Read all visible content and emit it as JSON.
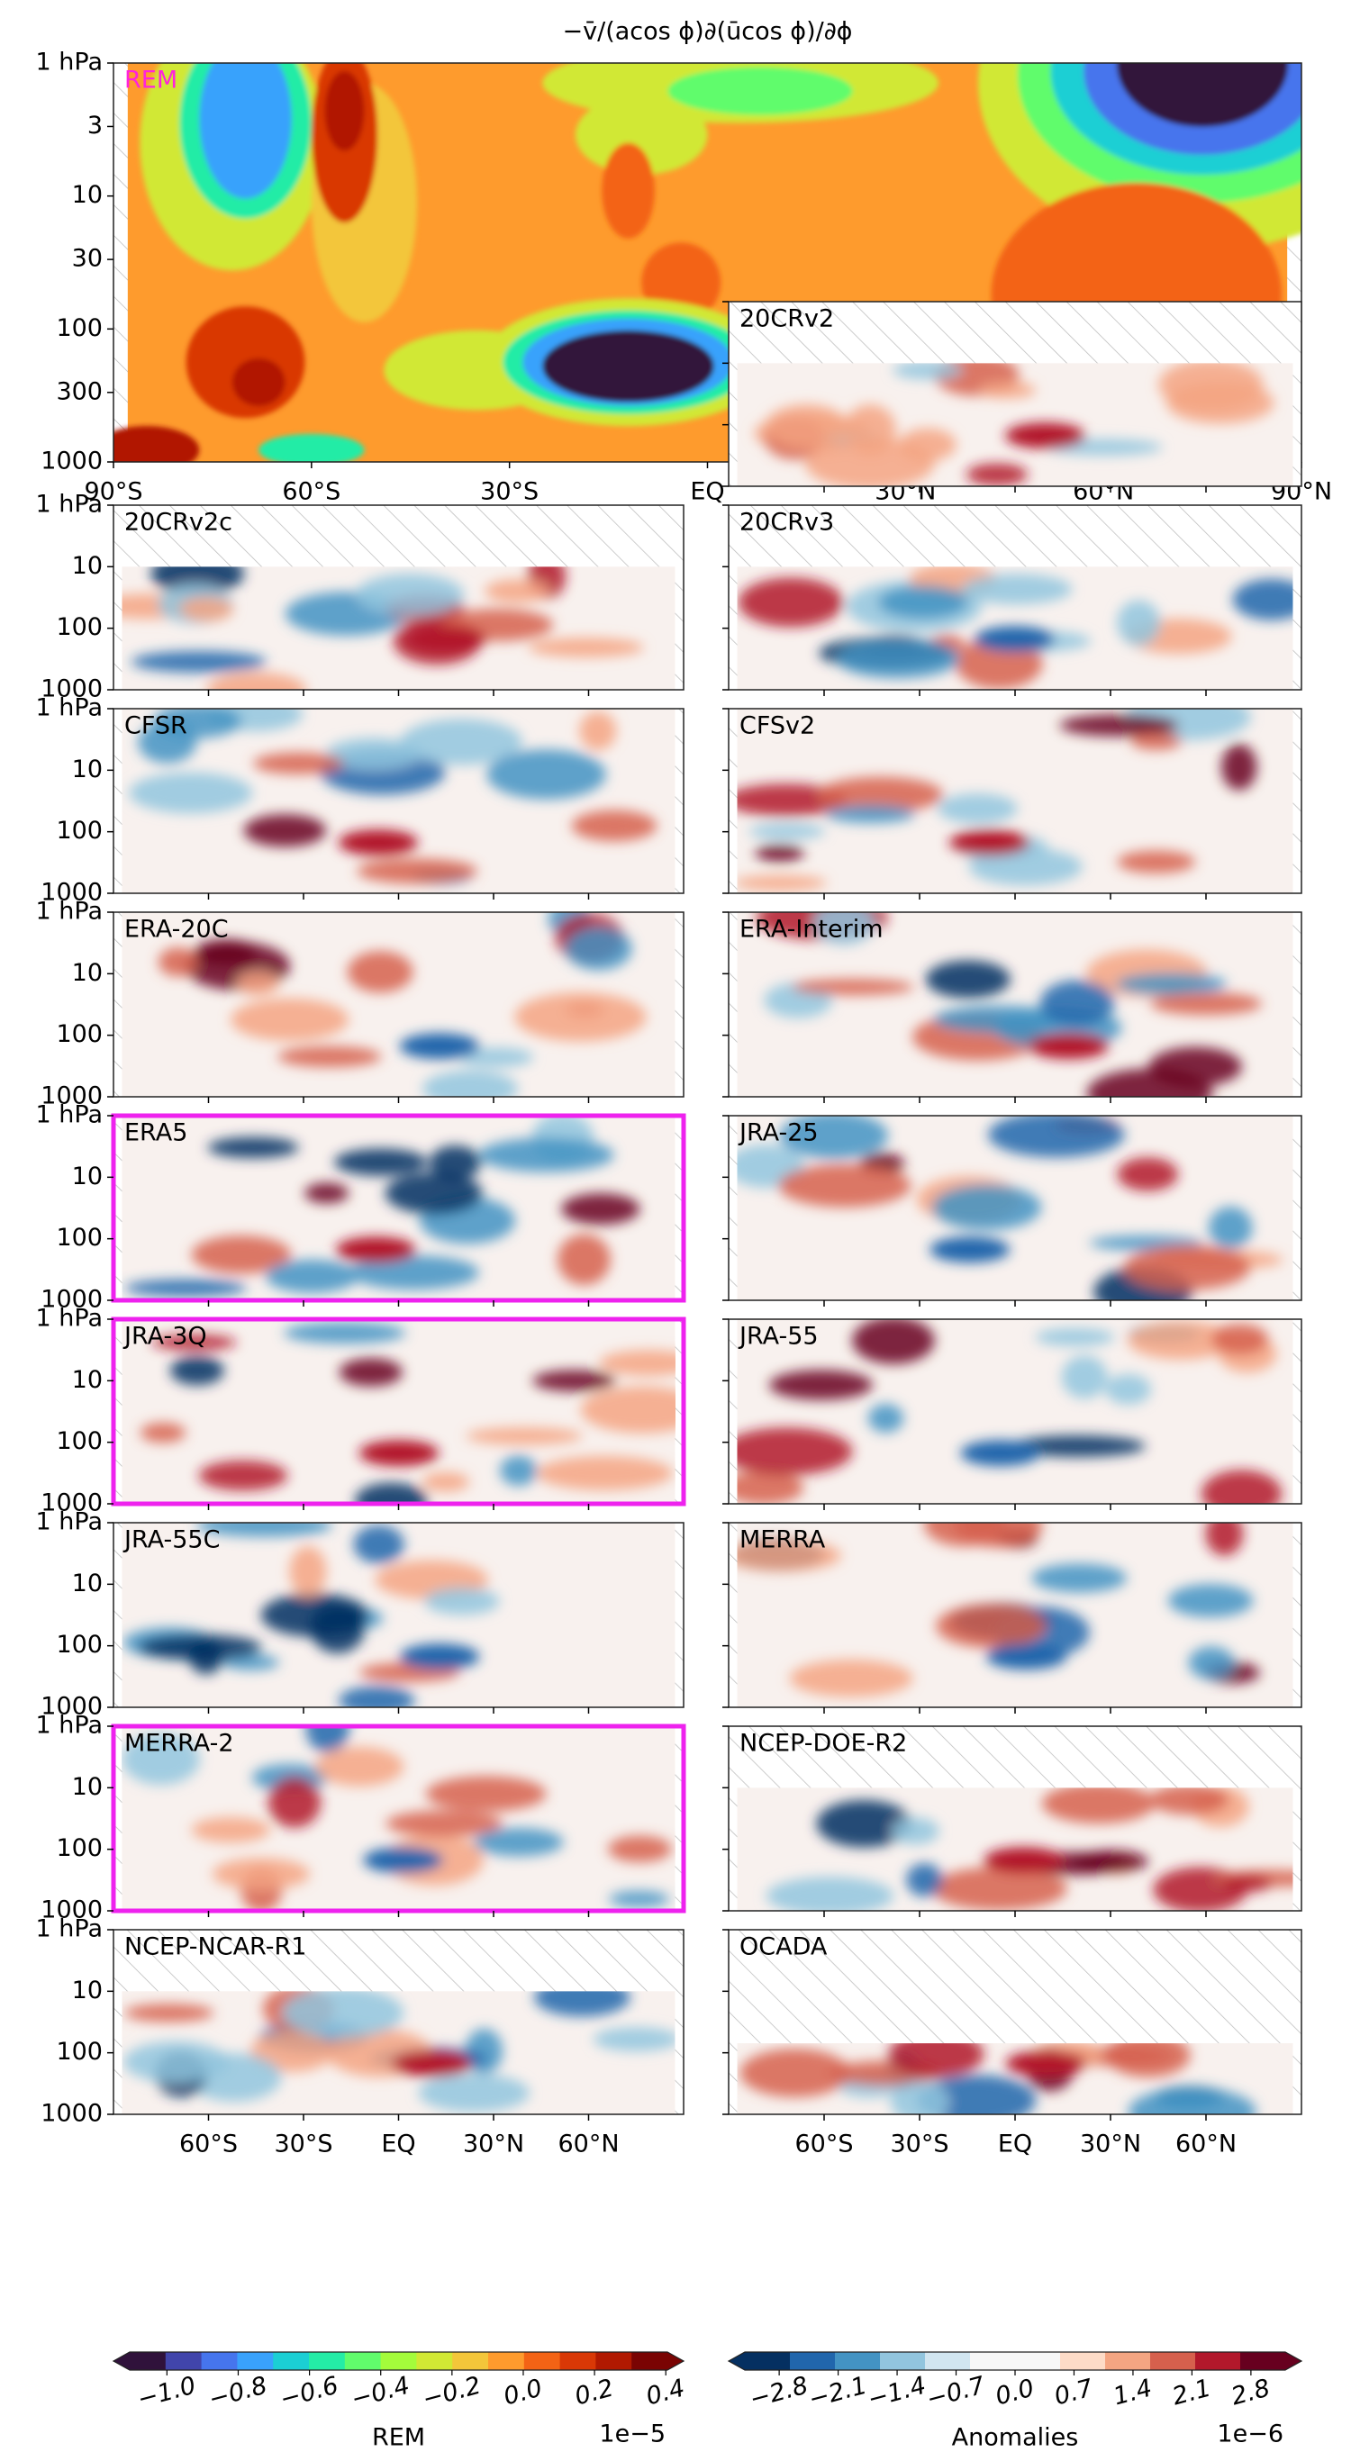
{
  "chart_data": [
    {
      "type": "contour",
      "title": "−v̄/(acos ϕ)∂(ūcos ϕ)/∂ϕ",
      "label": "REM",
      "label_color": "#ff22dd",
      "xlim": [
        -90,
        90
      ],
      "ylim": [
        1000,
        1
      ],
      "log_y": true,
      "xticks": [
        {
          "value": -90,
          "label": "90°S"
        },
        {
          "value": -60,
          "label": "60°S"
        },
        {
          "value": -30,
          "label": "30°S"
        },
        {
          "value": 0,
          "label": "EQ"
        },
        {
          "value": 30,
          "label": "30°N"
        },
        {
          "value": 60,
          "label": "60°N"
        },
        {
          "value": 90,
          "label": "90°N"
        }
      ],
      "xtick_labels": true,
      "yticks": [
        {
          "value": 1,
          "label": "1 hPa"
        },
        3,
        10,
        30,
        100,
        300,
        1000
      ],
      "ytick_labels": true,
      "colorbar": 0
    },
    {
      "type": "contour",
      "label": "20CRv2",
      "xlim": [
        -90,
        90
      ],
      "ylim": [
        1000,
        1
      ],
      "log_y": true,
      "xticks": [
        -60,
        -30,
        0,
        30,
        60
      ],
      "xtick_labels": false,
      "yticks": [
        1,
        10,
        100,
        1000
      ],
      "ytick_labels": false,
      "hatch_above": 10,
      "highlight": false,
      "colorbar": 1
    },
    {
      "type": "contour",
      "label": "20CRv2c",
      "xlim": [
        -90,
        90
      ],
      "ylim": [
        1000,
        1
      ],
      "log_y": true,
      "xticks": [
        -60,
        -30,
        0,
        30,
        60
      ],
      "xtick_labels": false,
      "yticks": [
        {
          "value": 1,
          "label": "1 hPa"
        },
        10,
        100,
        1000
      ],
      "ytick_labels": true,
      "hatch_above": 10,
      "highlight": false,
      "colorbar": 1
    },
    {
      "type": "contour",
      "label": "20CRv3",
      "xlim": [
        -90,
        90
      ],
      "ylim": [
        1000,
        1
      ],
      "log_y": true,
      "xticks": [
        -60,
        -30,
        0,
        30,
        60
      ],
      "xtick_labels": false,
      "yticks": [
        1,
        10,
        100,
        1000
      ],
      "ytick_labels": false,
      "hatch_above": 10,
      "highlight": false,
      "colorbar": 1
    },
    {
      "type": "contour",
      "label": "CFSR",
      "xlim": [
        -90,
        90
      ],
      "ylim": [
        1000,
        1
      ],
      "log_y": true,
      "xticks": [
        -60,
        -30,
        0,
        30,
        60
      ],
      "xtick_labels": false,
      "yticks": [
        {
          "value": 1,
          "label": "1 hPa"
        },
        10,
        100,
        1000
      ],
      "ytick_labels": true,
      "highlight": false,
      "colorbar": 1
    },
    {
      "type": "contour",
      "label": "CFSv2",
      "xlim": [
        -90,
        90
      ],
      "ylim": [
        1000,
        1
      ],
      "log_y": true,
      "xticks": [
        -60,
        -30,
        0,
        30,
        60
      ],
      "xtick_labels": false,
      "yticks": [
        1,
        10,
        100,
        1000
      ],
      "ytick_labels": false,
      "highlight": false,
      "colorbar": 1
    },
    {
      "type": "contour",
      "label": "ERA-20C",
      "xlim": [
        -90,
        90
      ],
      "ylim": [
        1000,
        1
      ],
      "log_y": true,
      "xticks": [
        -60,
        -30,
        0,
        30,
        60
      ],
      "xtick_labels": false,
      "yticks": [
        {
          "value": 1,
          "label": "1 hPa"
        },
        10,
        100,
        1000
      ],
      "ytick_labels": true,
      "highlight": false,
      "colorbar": 1
    },
    {
      "type": "contour",
      "label": "ERA-Interim",
      "xlim": [
        -90,
        90
      ],
      "ylim": [
        1000,
        1
      ],
      "log_y": true,
      "xticks": [
        -60,
        -30,
        0,
        30,
        60
      ],
      "xtick_labels": false,
      "yticks": [
        1,
        10,
        100,
        1000
      ],
      "ytick_labels": false,
      "highlight": false,
      "colorbar": 1
    },
    {
      "type": "contour",
      "label": "ERA5",
      "xlim": [
        -90,
        90
      ],
      "ylim": [
        1000,
        1
      ],
      "log_y": true,
      "xticks": [
        -60,
        -30,
        0,
        30,
        60
      ],
      "xtick_labels": false,
      "yticks": [
        {
          "value": 1,
          "label": "1 hPa"
        },
        10,
        100,
        1000
      ],
      "ytick_labels": true,
      "highlight": true,
      "colorbar": 1
    },
    {
      "type": "contour",
      "label": "JRA-25",
      "xlim": [
        -90,
        90
      ],
      "ylim": [
        1000,
        1
      ],
      "log_y": true,
      "xticks": [
        -60,
        -30,
        0,
        30,
        60
      ],
      "xtick_labels": false,
      "yticks": [
        1,
        10,
        100,
        1000
      ],
      "ytick_labels": false,
      "highlight": false,
      "colorbar": 1
    },
    {
      "type": "contour",
      "label": "JRA-3Q",
      "xlim": [
        -90,
        90
      ],
      "ylim": [
        1000,
        1
      ],
      "log_y": true,
      "xticks": [
        -60,
        -30,
        0,
        30,
        60
      ],
      "xtick_labels": false,
      "yticks": [
        {
          "value": 1,
          "label": "1 hPa"
        },
        10,
        100,
        1000
      ],
      "ytick_labels": true,
      "highlight": true,
      "colorbar": 1
    },
    {
      "type": "contour",
      "label": "JRA-55",
      "xlim": [
        -90,
        90
      ],
      "ylim": [
        1000,
        1
      ],
      "log_y": true,
      "xticks": [
        -60,
        -30,
        0,
        30,
        60
      ],
      "xtick_labels": false,
      "yticks": [
        1,
        10,
        100,
        1000
      ],
      "ytick_labels": false,
      "highlight": false,
      "colorbar": 1
    },
    {
      "type": "contour",
      "label": "JRA-55C",
      "xlim": [
        -90,
        90
      ],
      "ylim": [
        1000,
        1
      ],
      "log_y": true,
      "xticks": [
        -60,
        -30,
        0,
        30,
        60
      ],
      "xtick_labels": false,
      "yticks": [
        {
          "value": 1,
          "label": "1 hPa"
        },
        10,
        100,
        1000
      ],
      "ytick_labels": true,
      "highlight": false,
      "colorbar": 1
    },
    {
      "type": "contour",
      "label": "MERRA",
      "xlim": [
        -90,
        90
      ],
      "ylim": [
        1000,
        1
      ],
      "log_y": true,
      "xticks": [
        -60,
        -30,
        0,
        30,
        60
      ],
      "xtick_labels": false,
      "yticks": [
        1,
        10,
        100,
        1000
      ],
      "ytick_labels": false,
      "highlight": false,
      "colorbar": 1
    },
    {
      "type": "contour",
      "label": "MERRA-2",
      "xlim": [
        -90,
        90
      ],
      "ylim": [
        1000,
        1
      ],
      "log_y": true,
      "xticks": [
        -60,
        -30,
        0,
        30,
        60
      ],
      "xtick_labels": false,
      "yticks": [
        {
          "value": 1,
          "label": "1 hPa"
        },
        10,
        100,
        1000
      ],
      "ytick_labels": true,
      "highlight": true,
      "colorbar": 1
    },
    {
      "type": "contour",
      "label": "NCEP-DOE-R2",
      "xlim": [
        -90,
        90
      ],
      "ylim": [
        1000,
        1
      ],
      "log_y": true,
      "xticks": [
        -60,
        -30,
        0,
        30,
        60
      ],
      "xtick_labels": false,
      "yticks": [
        1,
        10,
        100,
        1000
      ],
      "ytick_labels": false,
      "hatch_above": 10,
      "highlight": false,
      "colorbar": 1
    },
    {
      "type": "contour",
      "label": "NCEP-NCAR-R1",
      "xlim": [
        -90,
        90
      ],
      "ylim": [
        1000,
        1
      ],
      "log_y": true,
      "xticks": [
        {
          "value": -60,
          "label": "60°S"
        },
        {
          "value": -30,
          "label": "30°S"
        },
        {
          "value": 0,
          "label": "EQ"
        },
        {
          "value": 30,
          "label": "30°N"
        },
        {
          "value": 60,
          "label": "60°N"
        }
      ],
      "xtick_labels": true,
      "yticks": [
        {
          "value": 1,
          "label": "1 hPa"
        },
        10,
        100,
        1000
      ],
      "ytick_labels": true,
      "hatch_above": 10,
      "highlight": false,
      "colorbar": 1
    },
    {
      "type": "contour",
      "label": "OCADA",
      "xlim": [
        -90,
        90
      ],
      "ylim": [
        1000,
        1
      ],
      "log_y": true,
      "xticks": [
        {
          "value": -60,
          "label": "60°S"
        },
        {
          "value": -30,
          "label": "30°S"
        },
        {
          "value": 0,
          "label": "EQ"
        },
        {
          "value": 30,
          "label": "30°N"
        },
        {
          "value": 60,
          "label": "60°N"
        }
      ],
      "xtick_labels": true,
      "yticks": [
        1,
        10,
        100,
        1000
      ],
      "ytick_labels": false,
      "hatch_above": 70,
      "highlight": false,
      "colorbar": 1
    },
    {
      "type": "colorbar",
      "label": "REM",
      "exponent_label": "1e−5",
      "xlim": [
        -1.15,
        0.45
      ],
      "extend": "both",
      "colors": [
        "#30123b",
        "#4145ab",
        "#4675ed",
        "#39a2fc",
        "#1bcfd4",
        "#24eca6",
        "#61fc6c",
        "#a4fc3b",
        "#d1e834",
        "#f3c63a",
        "#fe9b2d",
        "#f36315",
        "#d93806",
        "#b11901",
        "#7a0403"
      ],
      "xticks": [
        {
          "value": -1.0,
          "label": "−1.0"
        },
        {
          "value": -0.8,
          "label": "−0.8"
        },
        {
          "value": -0.6,
          "label": "−0.6"
        },
        {
          "value": -0.4,
          "label": "−0.4"
        },
        {
          "value": -0.2,
          "label": "−0.2"
        },
        {
          "value": 0,
          "label": "0.0"
        },
        0.2,
        0.4
      ]
    },
    {
      "type": "colorbar",
      "label": "Anomalies",
      "exponent_label": "1e−6",
      "xlim": [
        -3.4,
        3.4
      ],
      "extend": "both",
      "colors": [
        "#053061",
        "#2166ac",
        "#4393c3",
        "#92c5de",
        "#d1e5f0",
        "#f7f7f7",
        "#f7f7f7",
        "#fddbc7",
        "#f4a582",
        "#d6604d",
        "#b2182b",
        "#67001f"
      ],
      "xticks": [
        {
          "value": -2.8,
          "label": "−2.8"
        },
        {
          "value": -2.1,
          "label": "−2.1"
        },
        {
          "value": -1.4,
          "label": "−1.4"
        },
        {
          "value": -0.7,
          "label": "−0.7"
        },
        {
          "value": 0,
          "label": "0.0"
        },
        0.7,
        1.4,
        2.1,
        2.8
      ]
    }
  ]
}
